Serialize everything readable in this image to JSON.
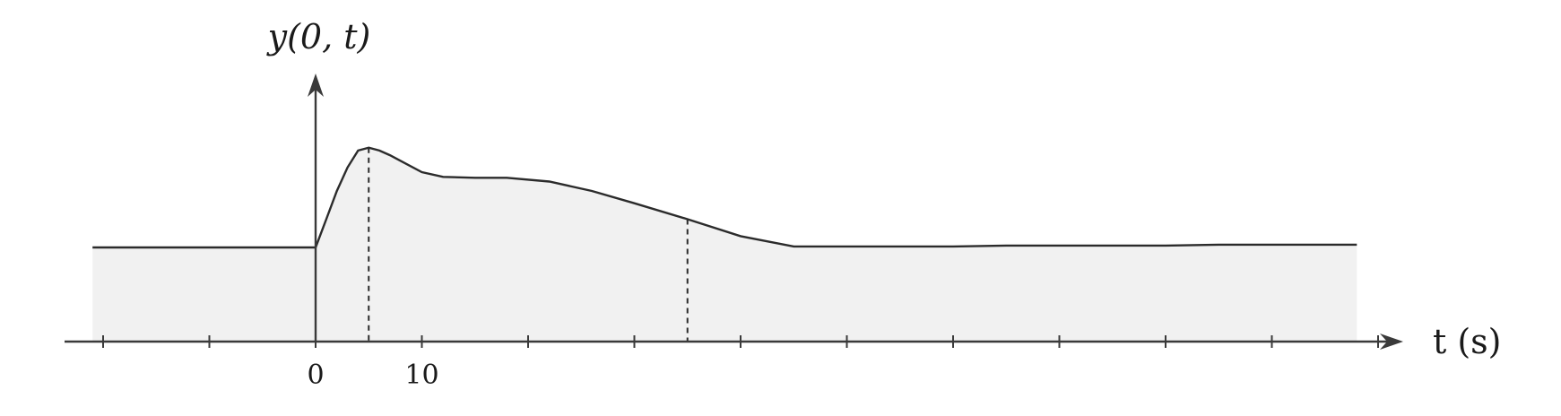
{
  "chart_data": {
    "type": "area",
    "ylabel": "y(0, t)",
    "xlabel": "t (s)",
    "xlim": [
      -21,
      103
    ],
    "ylim": [
      0,
      2.3
    ],
    "x_tick_step": 10,
    "x_tick_labels": [
      {
        "value": 0,
        "label": "0"
      },
      {
        "value": 10,
        "label": "10"
      }
    ],
    "series": [
      {
        "x": [
          -21,
          0,
          0,
          1,
          2,
          3,
          4,
          5,
          6,
          7,
          8,
          10,
          12,
          15,
          18,
          22,
          26,
          30,
          35,
          40,
          45,
          50,
          55,
          60,
          65,
          70,
          75,
          80,
          85,
          90,
          95,
          98
        ],
        "y": [
          1.0,
          1.0,
          1.0,
          1.3,
          1.6,
          1.85,
          2.03,
          2.06,
          2.03,
          1.98,
          1.92,
          1.8,
          1.75,
          1.74,
          1.74,
          1.7,
          1.6,
          1.47,
          1.3,
          1.12,
          1.01,
          1.01,
          1.01,
          1.01,
          1.02,
          1.02,
          1.02,
          1.02,
          1.03,
          1.03,
          1.03,
          1.03
        ]
      }
    ],
    "markers": [
      5,
      35
    ],
    "grid": false
  }
}
